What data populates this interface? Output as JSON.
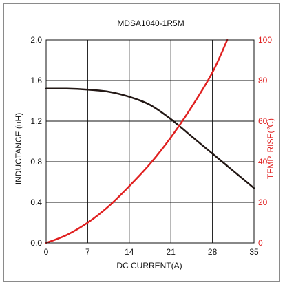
{
  "chart_data": {
    "type": "line",
    "title": "MDSA1040-1R5M",
    "xlabel": "DC CURRENT(A)",
    "ylabel": "INDUCTANCE (uH)",
    "y2label": "TEMP. RISE(℃)",
    "xlim": [
      0,
      35
    ],
    "ylim": [
      0,
      2.0
    ],
    "y2lim": [
      0,
      100
    ],
    "x_ticks": [
      "0",
      "7",
      "14",
      "21",
      "28",
      "35"
    ],
    "y_ticks": [
      "0.0",
      "0.4",
      "0.8",
      "1.2",
      "1.6",
      "2.0"
    ],
    "y2_ticks": [
      "0",
      "20",
      "40",
      "60",
      "80",
      "100"
    ],
    "grid": true,
    "series": [
      {
        "axis": "left",
        "color": "#231815",
        "x": [
          0,
          3.5,
          7,
          10.5,
          14,
          17.5,
          21,
          24.5,
          28,
          31.5,
          35
        ],
        "values": [
          1.52,
          1.52,
          1.51,
          1.49,
          1.44,
          1.36,
          1.22,
          1.05,
          0.88,
          0.71,
          0.54
        ]
      },
      {
        "axis": "right",
        "color": "#e02020",
        "x": [
          0,
          3.5,
          7,
          10.5,
          14,
          17.5,
          21,
          24.5,
          28,
          30.5
        ],
        "values": [
          0,
          4,
          10,
          18,
          28,
          39,
          52,
          67,
          84,
          100
        ]
      }
    ]
  }
}
